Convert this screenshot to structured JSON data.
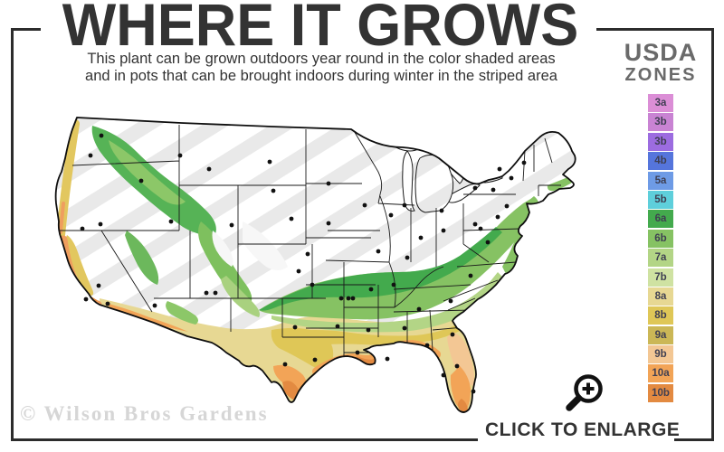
{
  "header": {
    "title": "WHERE IT GROWS",
    "subtitle_line1": "This plant can be grown outdoors year round in the color shaded areas",
    "subtitle_line2": "and in pots that can be brought indoors during winter in the striped area"
  },
  "legend": {
    "title_line1": "USDA",
    "title_line2": "ZONES",
    "zones": [
      {
        "label": "3a",
        "color": "#DB8ED6"
      },
      {
        "label": "3b",
        "color": "#C983D3"
      },
      {
        "label": "3b",
        "color": "#9C6CE0"
      },
      {
        "label": "4b",
        "color": "#5575DC"
      },
      {
        "label": "5a",
        "color": "#6E9BE6"
      },
      {
        "label": "5b",
        "color": "#5ECFDB"
      },
      {
        "label": "6a",
        "color": "#43AA4D"
      },
      {
        "label": "6b",
        "color": "#86C263"
      },
      {
        "label": "7a",
        "color": "#B3D586"
      },
      {
        "label": "7b",
        "color": "#CFE2A2"
      },
      {
        "label": "8a",
        "color": "#E7D893"
      },
      {
        "label": "8b",
        "color": "#DFC757"
      },
      {
        "label": "9a",
        "color": "#CBB756"
      },
      {
        "label": "9b",
        "color": "#F3C794"
      },
      {
        "label": "10a",
        "color": "#F2A457"
      },
      {
        "label": "10b",
        "color": "#E38A41"
      }
    ]
  },
  "map": {
    "stripe_color": "#e9e9e9",
    "border_color": "#1a1a1a",
    "dot_color": "#111111",
    "city_dots": [
      [
        62,
        45
      ],
      [
        50,
        67
      ],
      [
        106,
        95
      ],
      [
        149,
        67
      ],
      [
        181,
        82
      ],
      [
        248,
        74
      ],
      [
        252,
        106
      ],
      [
        313,
        98
      ],
      [
        139,
        140
      ],
      [
        206,
        144
      ],
      [
        41,
        148
      ],
      [
        61,
        143
      ],
      [
        59,
        211
      ],
      [
        45,
        226
      ],
      [
        69,
        231
      ],
      [
        121,
        233
      ],
      [
        178,
        219
      ],
      [
        188,
        219
      ],
      [
        272,
        137
      ],
      [
        313,
        142
      ],
      [
        290,
        176
      ],
      [
        280,
        195
      ],
      [
        276,
        257
      ],
      [
        295,
        210
      ],
      [
        327,
        225
      ],
      [
        335,
        225
      ],
      [
        323,
        256
      ],
      [
        378,
        292
      ],
      [
        298,
        293
      ],
      [
        265,
        298
      ],
      [
        353,
        122
      ],
      [
        382,
        133
      ],
      [
        397,
        122
      ],
      [
        438,
        128
      ],
      [
        415,
        158
      ],
      [
        440,
        150
      ],
      [
        368,
        173
      ],
      [
        400,
        180
      ],
      [
        385,
        210
      ],
      [
        360,
        215
      ],
      [
        340,
        225
      ],
      [
        357,
        260
      ],
      [
        397,
        258
      ],
      [
        413,
        237
      ],
      [
        448,
        228
      ],
      [
        470,
        200
      ],
      [
        489,
        163
      ],
      [
        481,
        148
      ],
      [
        500,
        135
      ],
      [
        510,
        123
      ],
      [
        515,
        92
      ],
      [
        502,
        82
      ],
      [
        529,
        75
      ],
      [
        495,
        105
      ],
      [
        475,
        103
      ],
      [
        475,
        143
      ],
      [
        345,
        285
      ],
      [
        422,
        277
      ],
      [
        450,
        265
      ],
      [
        455,
        300
      ],
      [
        440,
        310
      ],
      [
        473,
        328
      ]
    ]
  },
  "footer": {
    "cta_label": "CLICK TO ENLARGE",
    "watermark": "© Wilson Bros Gardens"
  },
  "colors": {
    "frame": "#2c2c2c",
    "title_text": "#333333",
    "legend_title_text": "#6a6a6a",
    "watermark_text": "#d6d6d6"
  }
}
